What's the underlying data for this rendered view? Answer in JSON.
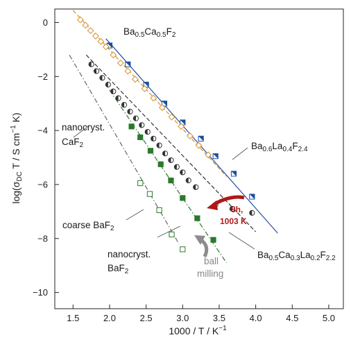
{
  "chart_data": {
    "type": "scatter",
    "title": "",
    "xlabel": "1000 / T / K⁻¹",
    "ylabel": "log(σDC T / S cm⁻¹ K)",
    "xlim": [
      1.25,
      5.2
    ],
    "ylim": [
      -10.6,
      0.5
    ],
    "xticks": [
      "1.5",
      "2.0",
      "2.5",
      "3.0",
      "3.5",
      "4.0",
      "4.5",
      "5.0"
    ],
    "yticks": [
      "0",
      "-2",
      "-4",
      "-6",
      "-8",
      "-10"
    ],
    "grid": false,
    "colors": {
      "blue": "#1f4e9e",
      "orange": "#d4902a",
      "black": "#333333",
      "green": "#2a7a2a",
      "grey": "#666666",
      "red_arrow": "#b01818",
      "grey_arrow": "#8c8c8c"
    },
    "series": [
      {
        "key": "bacalaf",
        "color": "#1f4e9e",
        "marker": "half-square",
        "line": "solid",
        "fit_x": [
          1.95,
          4.3
        ],
        "fit_y": [
          -0.6,
          -7.8
        ],
        "x": [
          2.0,
          2.25,
          2.5,
          2.75,
          3.0,
          3.25,
          3.45,
          3.7,
          3.95
        ],
        "y": [
          -0.85,
          -1.55,
          -2.3,
          -3.0,
          -3.7,
          -4.3,
          -4.95,
          -5.6,
          -6.45
        ]
      },
      {
        "key": "baca",
        "color": "#d4902a",
        "marker": "open-diamond",
        "line": "dashed",
        "fit_x": [
          1.5,
          3.6
        ],
        "fit_y": [
          0.45,
          -5.7
        ],
        "x": [
          1.6,
          1.67,
          1.74,
          1.81,
          1.88,
          1.95,
          2.05,
          2.15,
          2.25,
          2.35,
          2.48,
          2.6,
          2.72,
          2.85,
          2.98,
          3.1,
          3.22,
          3.35
        ],
        "y": [
          0.1,
          -0.1,
          -0.3,
          -0.5,
          -0.7,
          -0.9,
          -1.2,
          -1.5,
          -1.8,
          -2.1,
          -2.45,
          -2.8,
          -3.15,
          -3.5,
          -3.85,
          -4.2,
          -4.55,
          -4.9
        ]
      },
      {
        "key": "bala",
        "color": "#333333",
        "marker": "half-circle",
        "line": "dashed",
        "fit_x": [
          1.68,
          4.0
        ],
        "fit_y": [
          -1.2,
          -7.75
        ],
        "x": [
          1.75,
          1.82,
          1.9,
          1.98,
          2.05,
          2.12,
          2.2,
          2.28,
          2.36,
          2.44,
          2.52,
          2.6,
          2.68,
          2.76,
          2.84,
          2.92,
          3.0,
          3.08,
          3.18,
          3.45,
          3.68,
          3.95
        ],
        "y": [
          -1.55,
          -1.8,
          -2.05,
          -2.3,
          -2.55,
          -2.8,
          -3.05,
          -3.3,
          -3.55,
          -3.8,
          -4.05,
          -4.3,
          -4.55,
          -4.85,
          -5.1,
          -5.35,
          -5.55,
          -5.85,
          -6.1,
          -6.75,
          -6.9,
          -7.05
        ]
      },
      {
        "key": "nanobaf",
        "color": "#2a7a2a",
        "marker": "filled-square",
        "line": "dashdot",
        "fit_x": [
          2.0,
          3.6
        ],
        "fit_y": [
          -2.5,
          -8.9
        ],
        "x": [
          2.3,
          2.42,
          2.56,
          2.7,
          2.84,
          3.0,
          3.2,
          3.42
        ],
        "y": [
          -3.85,
          -4.25,
          -4.75,
          -5.25,
          -5.85,
          -6.5,
          -7.25,
          -8.05
        ]
      },
      {
        "key": "coarse",
        "color": "#2a7a2a",
        "marker": "open-square",
        "line": "none",
        "x": [
          2.42,
          2.55,
          2.68,
          2.85,
          3.0
        ],
        "y": [
          -5.95,
          -6.35,
          -6.95,
          -7.85,
          -8.4
        ]
      },
      {
        "key": "cafline",
        "color": "#666666",
        "marker": "none",
        "line": "dashdot",
        "fit_x": [
          1.45,
          2.95
        ],
        "fit_y": [
          -1.2,
          -8.2
        ]
      }
    ],
    "labels": {
      "baca": "Ba0.5Ca0.5F2",
      "bala": "Ba0.6La0.4F2.4",
      "nanocaf_1": "nanocryst.",
      "nanocaf_2": "CaF2",
      "coarse": "coarse BaF2",
      "nanobaf_1": "nanocryst.",
      "nanobaf_2": "BaF2",
      "bacala": "Ba0.5Ca0.3La0.2F2.2",
      "anneal_1": "8h,",
      "anneal_2": "1003 K",
      "milling_1": "ball",
      "milling_2": "milling"
    }
  }
}
